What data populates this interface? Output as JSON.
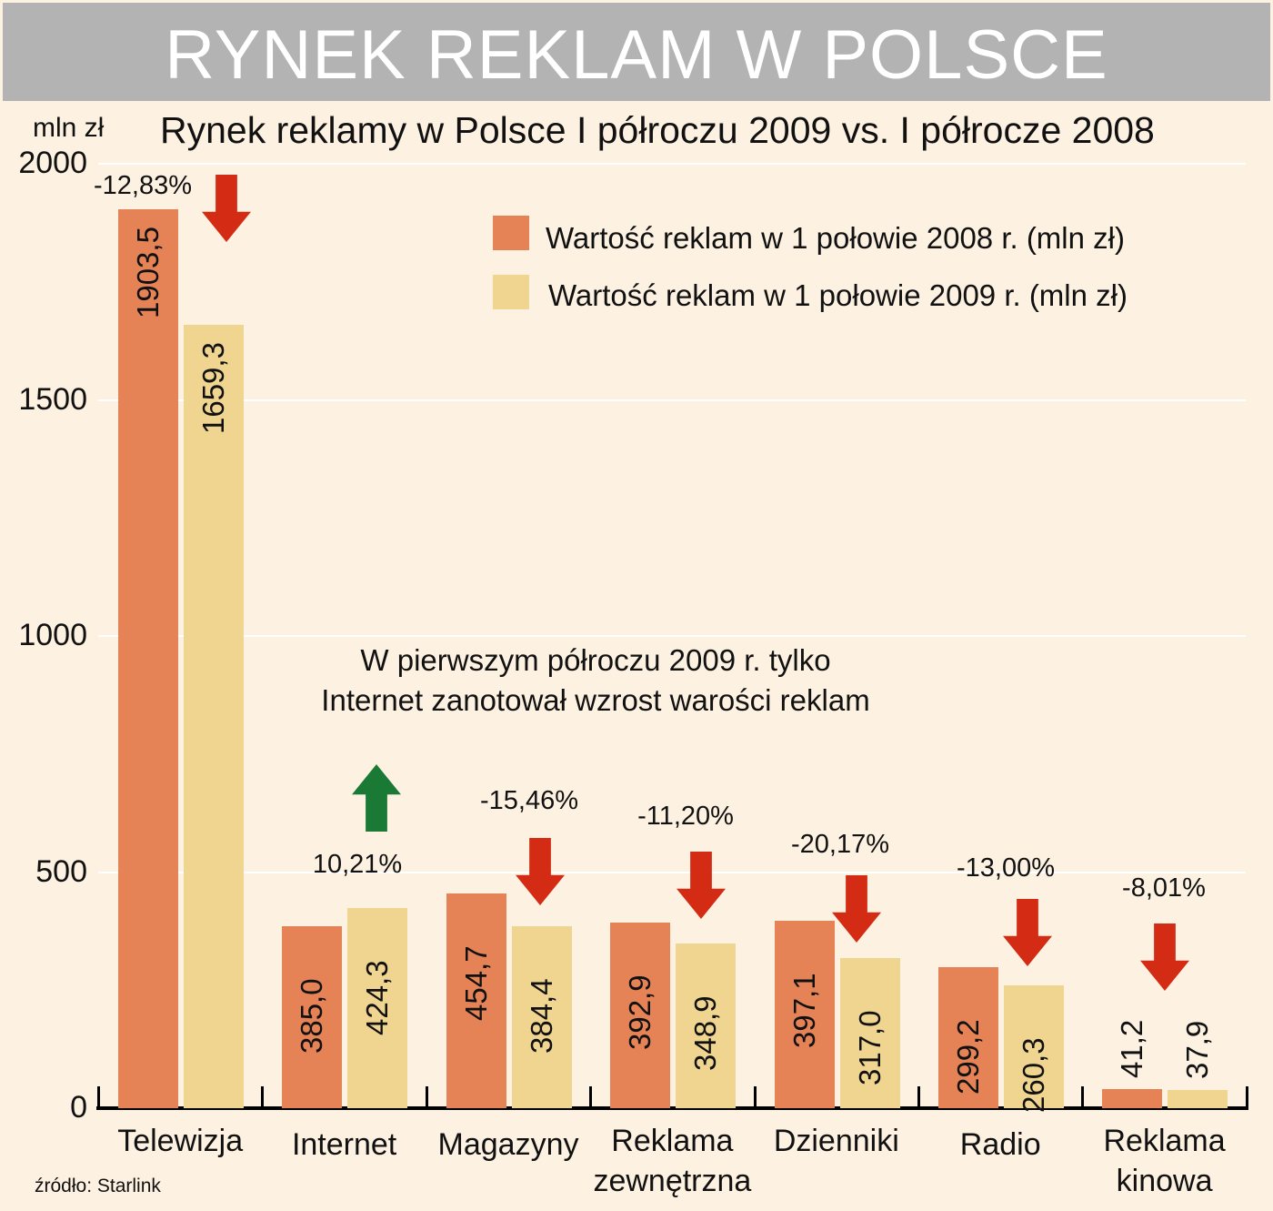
{
  "banner": {
    "title": "RYNEK REKLAM W POLSCE"
  },
  "chart": {
    "unit_label": "mln zł",
    "subtitle": "Rynek reklamy w Polsce I półroczu 2009 vs. I półrocze 2008",
    "y_ticks": [
      "2000",
      "1500",
      "1000",
      "500",
      "0"
    ],
    "legend": [
      {
        "label": "Wartość reklam w 1 połowie 2008 r. (mln zł)",
        "color": "#e58357"
      },
      {
        "label": "Wartość reklam w 1 połowie 2009 r. (mln zł)",
        "color": "#f0d591"
      }
    ],
    "note_line1": "W pierwszym półroczu 2009 r. tylko",
    "note_line2": "Internet zanotował wzrost warości reklam",
    "source": "źródło: Starlink",
    "categories": [
      {
        "label1": "Telewizja",
        "label2": "",
        "v2008": "1903,5",
        "v2009": "1659,3",
        "change": "-12,83%"
      },
      {
        "label1": "Internet",
        "label2": "",
        "v2008": "385,0",
        "v2009": "424,3",
        "change": "10,21%"
      },
      {
        "label1": "Magazyny",
        "label2": "",
        "v2008": "454,7",
        "v2009": "384,4",
        "change": "-15,46%"
      },
      {
        "label1": "Reklama",
        "label2": "zewnętrzna",
        "v2008": "392,9",
        "v2009": "348,9",
        "change": "-11,20%"
      },
      {
        "label1": "Dzienniki",
        "label2": "",
        "v2008": "397,1",
        "v2009": "317,0",
        "change": "-20,17%"
      },
      {
        "label1": "Radio",
        "label2": "",
        "v2008": "299,2",
        "v2009": "260,3",
        "change": "-13,00%"
      },
      {
        "label1": "Reklama",
        "label2": "kinowa",
        "v2008": "41,2",
        "v2009": "37,9",
        "change": "-8,01%"
      }
    ],
    "colors": {
      "up_arrow": "#1a7a35",
      "down_arrow": "#d42c14",
      "bar_2008": "#e58357",
      "bar_2009": "#f0d591"
    }
  },
  "chart_data": {
    "type": "bar",
    "title": "RYNEK REKLAM W POLSCE",
    "subtitle": "Rynek reklamy w Polsce I półroczu 2009 vs. I półrocze 2008",
    "categories": [
      "Telewizja",
      "Internet",
      "Magazyny",
      "Reklama zewnętrzna",
      "Dzienniki",
      "Radio",
      "Reklama kinowa"
    ],
    "series": [
      {
        "name": "Wartość reklam w 1 połowie 2008 r. (mln zł)",
        "values": [
          1903.5,
          385.0,
          454.7,
          392.9,
          397.1,
          299.2,
          41.2
        ]
      },
      {
        "name": "Wartość reklam w 1 połowie 2009 r. (mln zł)",
        "values": [
          1659.3,
          424.3,
          384.4,
          348.9,
          317.0,
          260.3,
          37.9
        ]
      }
    ],
    "annotations": {
      "percent_change": [
        "-12,83%",
        "10,21%",
        "-15,46%",
        "-11,20%",
        "-20,17%",
        "-13,00%",
        "-8,01%"
      ],
      "note": "W pierwszym półroczu 2009 r. tylko Internet zanotował wzrost warości reklam",
      "source": "źródło: Starlink"
    },
    "xlabel": "",
    "ylabel": "mln zł",
    "ylim": [
      0,
      2000
    ],
    "yticks": [
      0,
      500,
      1000,
      1500,
      2000
    ],
    "grid": true,
    "legend_position": "top-right"
  }
}
